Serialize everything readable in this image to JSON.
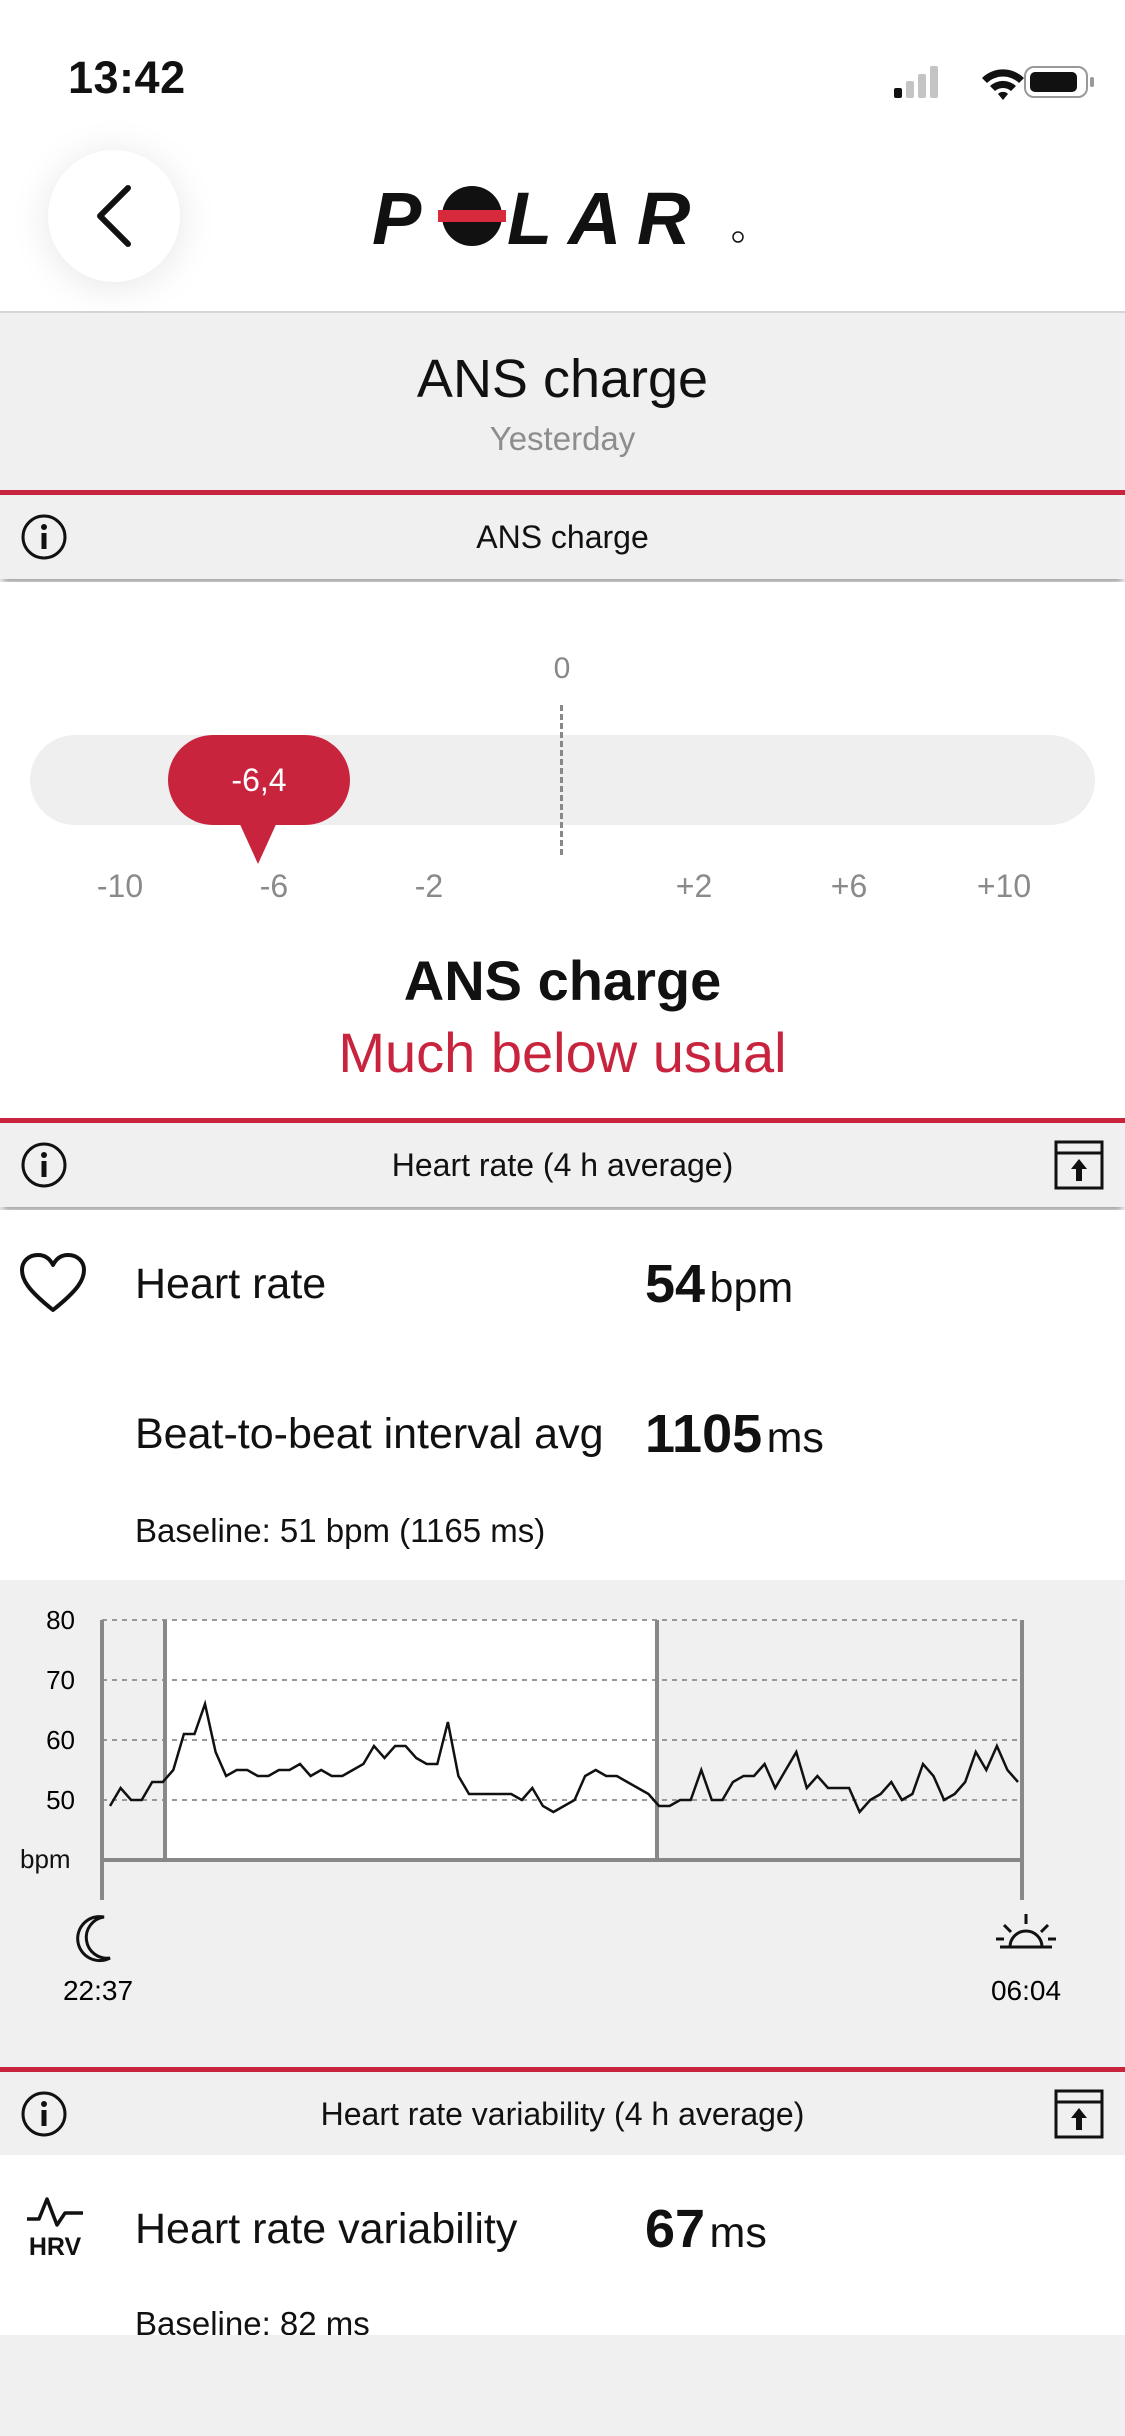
{
  "status_bar": {
    "time": "13:42"
  },
  "header": {
    "brand": "POLAR"
  },
  "title": {
    "main": "ANS charge",
    "sub": "Yesterday"
  },
  "ans_section": {
    "header_label": "ANS charge",
    "zero_label": "0",
    "value": "-6,4",
    "scale_labels": [
      "-10",
      "-6",
      "-2",
      "+2",
      "+6",
      "+10"
    ],
    "result_title": "ANS charge",
    "result_status": "Much below usual",
    "accent_color": "#c8243d"
  },
  "hr_section": {
    "header_label": "Heart rate (4 h average)",
    "heart_rate_label": "Heart rate",
    "heart_rate_value": "54",
    "heart_rate_unit": "bpm",
    "rr_label": "Beat-to-beat interval avg",
    "rr_value": "1105",
    "rr_unit": "ms",
    "baseline": "Baseline: 51 bpm (1165 ms)"
  },
  "chart_data": {
    "type": "line",
    "ylabel": "bpm",
    "yticks": [
      "80",
      "70",
      "60",
      "50"
    ],
    "ylim": [
      40,
      80
    ],
    "start_time": "22:37",
    "end_time": "06:04",
    "highlighted_window": "4 h average period",
    "series": [
      {
        "values": [
          49,
          52,
          50,
          50,
          53,
          53,
          55,
          61,
          61,
          66,
          58,
          54,
          55,
          55,
          54,
          54,
          55,
          55,
          56,
          54,
          55,
          54,
          54,
          55,
          56,
          59,
          57,
          59,
          59,
          57,
          56,
          56,
          63,
          54,
          51,
          51,
          51,
          51,
          51,
          50,
          52,
          49,
          48,
          49,
          50,
          54,
          55,
          54,
          54,
          53,
          52,
          51,
          49,
          49,
          50,
          50,
          55,
          50,
          50,
          53,
          54,
          54,
          56,
          52,
          55,
          58,
          52,
          54,
          52,
          52,
          52,
          48,
          50,
          51,
          53,
          50,
          51,
          56,
          54,
          50,
          51,
          53,
          58,
          55,
          59,
          55,
          53
        ]
      }
    ]
  },
  "hrv_section": {
    "header_label": "Heart rate variability (4 h average)",
    "label": "Heart rate variability",
    "value": "67",
    "unit": "ms",
    "baseline": "Baseline: 82 ms",
    "icon_text": "HRV"
  }
}
